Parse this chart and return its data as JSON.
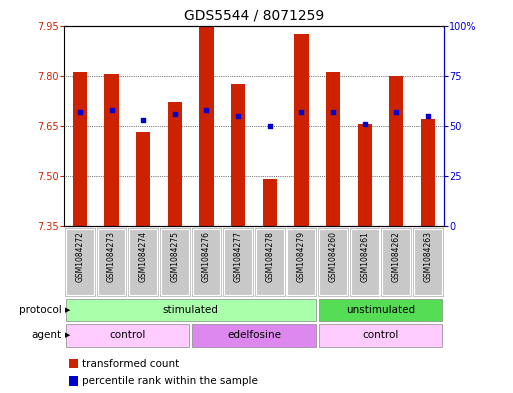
{
  "title": "GDS5544 / 8071259",
  "samples": [
    "GSM1084272",
    "GSM1084273",
    "GSM1084274",
    "GSM1084275",
    "GSM1084276",
    "GSM1084277",
    "GSM1084278",
    "GSM1084279",
    "GSM1084260",
    "GSM1084261",
    "GSM1084262",
    "GSM1084263"
  ],
  "bar_values": [
    7.81,
    7.805,
    7.63,
    7.72,
    7.945,
    7.775,
    7.49,
    7.925,
    7.81,
    7.655,
    7.8,
    7.67
  ],
  "percentile_values": [
    57,
    58,
    53,
    56,
    58,
    55,
    50,
    57,
    57,
    51,
    57,
    55
  ],
  "y_min": 7.35,
  "y_max": 7.95,
  "y_ticks": [
    7.35,
    7.5,
    7.65,
    7.8,
    7.95
  ],
  "right_y_ticks": [
    0,
    25,
    50,
    75,
    100
  ],
  "bar_color": "#CC2200",
  "dot_color": "#0000CC",
  "protocol_groups": [
    {
      "label": "stimulated",
      "start": 0,
      "end": 7,
      "color": "#AAFFAA"
    },
    {
      "label": "unstimulated",
      "start": 8,
      "end": 11,
      "color": "#55DD55"
    }
  ],
  "agent_groups": [
    {
      "label": "control",
      "start": 0,
      "end": 3,
      "color": "#FFCCFF"
    },
    {
      "label": "edelfosine",
      "start": 4,
      "end": 7,
      "color": "#DD88EE"
    },
    {
      "label": "control",
      "start": 8,
      "end": 11,
      "color": "#FFCCFF"
    }
  ],
  "legend_bar_label": "transformed count",
  "legend_dot_label": "percentile rank within the sample",
  "title_fontsize": 10,
  "tick_fontsize": 7,
  "sample_fontsize": 5.5
}
